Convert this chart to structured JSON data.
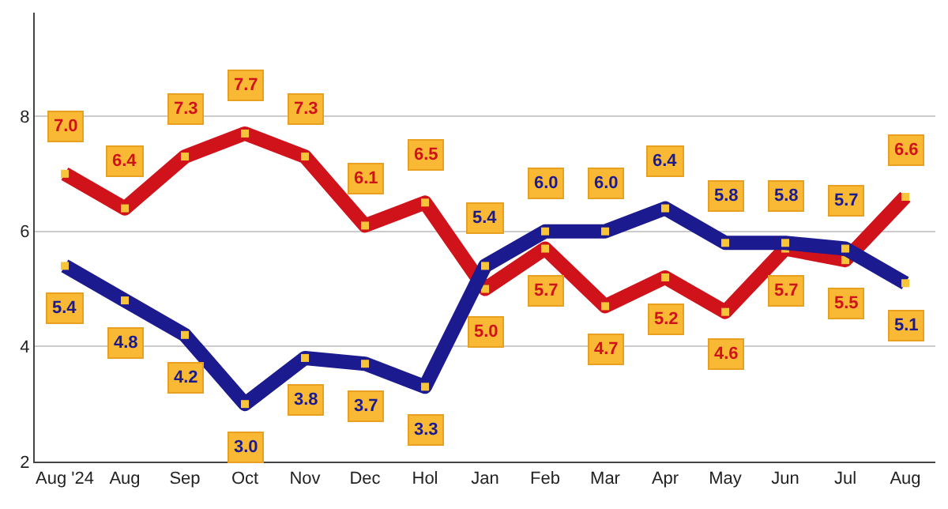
{
  "chart_data": {
    "type": "line",
    "categories": [
      "Aug '24",
      "Aug",
      "Sep",
      "Oct",
      "Nov",
      "Dec",
      "Hol",
      "Jan",
      "Feb",
      "Mar",
      "Apr",
      "May",
      "Jun",
      "Jul",
      "Aug"
    ],
    "series": [
      {
        "color": "#d0121b",
        "values": [
          7.0,
          6.4,
          7.3,
          7.7,
          7.3,
          6.1,
          6.5,
          5.0,
          5.7,
          4.7,
          5.2,
          4.6,
          5.7,
          5.5,
          6.6
        ],
        "value_labels": [
          "7.0",
          "6.4",
          "7.3",
          "7.7",
          "7.3",
          "6.1",
          "6.5",
          "5.0",
          "5.7",
          "4.7",
          "5.2",
          "4.6",
          "5.7",
          "5.5",
          "6.6"
        ]
      },
      {
        "color": "#1c1a8f",
        "values": [
          5.4,
          4.8,
          4.2,
          3.0,
          3.8,
          3.7,
          3.3,
          5.4,
          6.0,
          6.0,
          6.4,
          5.8,
          5.8,
          5.7,
          5.1
        ],
        "value_labels": [
          "5.4",
          "4.8",
          "4.2",
          "3.0",
          "3.8",
          "3.7",
          "3.3",
          "5.4",
          "6.0",
          "6.0",
          "6.4",
          "5.8",
          "5.8",
          "5.7",
          "5.1"
        ]
      }
    ],
    "ylim": [
      2,
      9.8
    ],
    "yticks": [
      2,
      4,
      6,
      8
    ],
    "grid": "y",
    "marker": "square",
    "line_style": "solid"
  }
}
